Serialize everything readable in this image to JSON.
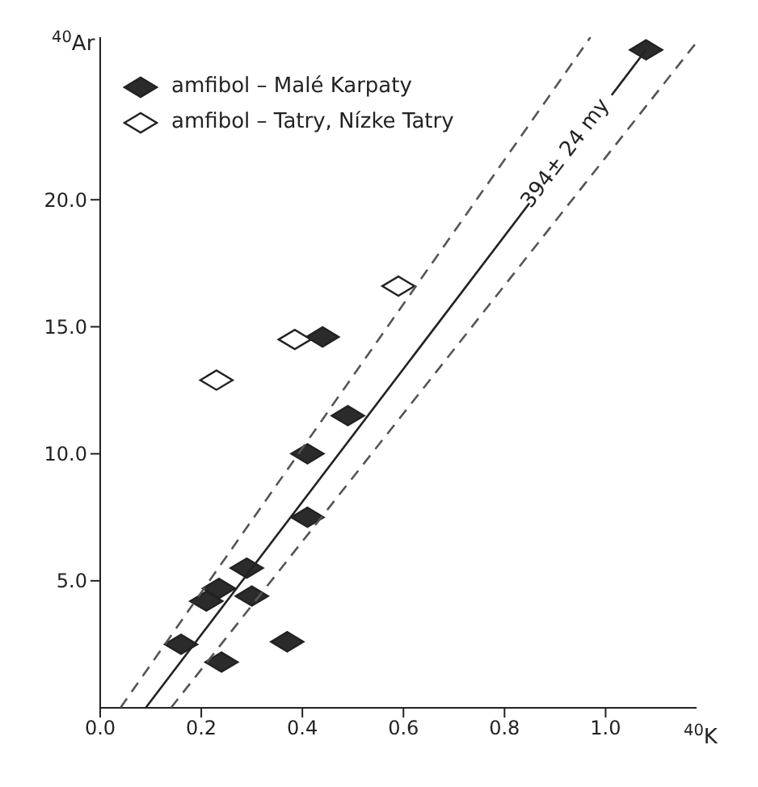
{
  "chart_data": {
    "type": "scatter",
    "xlabel": "$^{40}$K",
    "ylabel": "$^{40}$Ar",
    "xlim": [
      0,
      1.18
    ],
    "ylim": [
      0,
      26.4
    ],
    "xticks": [
      {
        "value": 0,
        "label": "0.0"
      },
      {
        "value": 0.2,
        "label": "0.2"
      },
      {
        "value": 0.4,
        "label": "0.4"
      },
      {
        "value": 0.6,
        "label": "0.6"
      },
      {
        "value": 0.8,
        "label": "0.8"
      },
      {
        "value": 1,
        "label": "1.0"
      }
    ],
    "yticks": [
      {
        "value": 5,
        "label": "5.0"
      },
      {
        "value": 10,
        "label": "10.0"
      },
      {
        "value": 15,
        "label": "15.0"
      },
      {
        "value": 20,
        "label": "20.0"
      }
    ],
    "grid": false,
    "legend": "top left",
    "marker": "diamond",
    "series": [
      {
        "name": "amfibol – Malé Karpaty",
        "color": "#2b2b2b",
        "x": [
          1.08,
          0.44,
          0.49,
          0.41,
          0.41,
          0.29,
          0.235,
          0.21,
          0.3,
          0.16,
          0.24,
          0.37
        ],
        "values": [
          25.9,
          14.6,
          11.5,
          10.0,
          7.5,
          5.5,
          4.7,
          4.2,
          4.4,
          2.5,
          1.8,
          2.6
        ]
      },
      {
        "name": "amfibol – Tatry, Nízke Tatry",
        "color": "#ffffff",
        "x": [
          0.59,
          0.385,
          0.23
        ],
        "values": [
          16.6,
          14.5,
          12.9
        ]
      },
      {
        "type": "line",
        "color": "#222222",
        "line_style": "solid",
        "marker": "none",
        "x": [
          0.09,
          1.08
        ],
        "values": [
          0,
          25.9
        ]
      },
      {
        "type": "line",
        "color": "#555555",
        "line_style": "dashed",
        "marker": "none",
        "x": [
          0.04,
          0.97
        ],
        "values": [
          0,
          26.4
        ]
      },
      {
        "type": "line",
        "color": "#555555",
        "line_style": "dashed",
        "marker": "none",
        "x": [
          0.14,
          1.18
        ],
        "values": [
          0,
          26.2
        ]
      }
    ],
    "annotations": [
      {
        "text": "394± 24 my",
        "x": 0.93,
        "y": 22.0
      }
    ]
  }
}
